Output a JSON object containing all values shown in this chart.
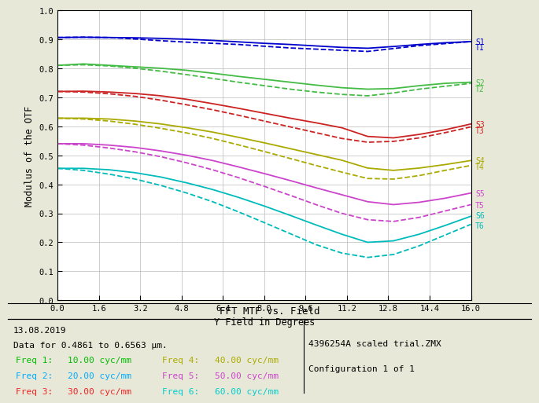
{
  "title": "FFT MTF vs. Field",
  "xlabel": "Y Field in Degrees",
  "ylabel": "Modulus of the OTF",
  "xlim": [
    0,
    16
  ],
  "ylim": [
    0.0,
    1.0
  ],
  "xticks": [
    0,
    1.6,
    3.2,
    4.8,
    6.4,
    8.0,
    9.6,
    11.2,
    12.8,
    14.4,
    16.0
  ],
  "yticks": [
    0.0,
    0.1,
    0.2,
    0.3,
    0.4,
    0.5,
    0.6,
    0.7,
    0.8,
    0.9,
    1.0
  ],
  "bg_color": "#e8e8d8",
  "plot_bg": "#ffffff",
  "date_text": "13.08.2019",
  "data_text": "Data for 0.4861 to 0.6563 µm.",
  "freq_labels": [
    {
      "label": "Freq 1:",
      "value": "10.00 cyc/mm",
      "color": "#00bb00"
    },
    {
      "label": "Freq 2:",
      "value": "20.00 cyc/mm",
      "color": "#00aaff"
    },
    {
      "label": "Freq 3:",
      "value": "30.00 cyc/mm",
      "color": "#ee2222"
    },
    {
      "label": "Freq 4:",
      "value": "40.00 cyc/mm",
      "color": "#aaaa00"
    },
    {
      "label": "Freq 5:",
      "value": "50.00 cyc/mm",
      "color": "#cc44cc"
    },
    {
      "label": "Freq 6:",
      "value": "60.00 cyc/mm",
      "color": "#00cccc"
    }
  ],
  "right_text_line1": "4396254A scaled trial.ZMX",
  "right_text_line2": "Configuration 1 of 1",
  "curves": {
    "S1": {
      "color": "#0000cc",
      "style": "solid",
      "x": [
        0,
        1,
        2,
        3,
        4,
        5,
        6,
        7,
        8,
        9,
        10,
        11,
        12,
        13,
        14,
        15,
        16
      ],
      "y": [
        0.906,
        0.907,
        0.906,
        0.905,
        0.903,
        0.9,
        0.896,
        0.891,
        0.886,
        0.882,
        0.877,
        0.872,
        0.869,
        0.875,
        0.882,
        0.888,
        0.892
      ]
    },
    "T1": {
      "color": "#0000cc",
      "style": "dashed",
      "x": [
        0,
        1,
        2,
        3,
        4,
        5,
        6,
        7,
        8,
        9,
        10,
        11,
        12,
        13,
        14,
        15,
        16
      ],
      "y": [
        0.906,
        0.907,
        0.906,
        0.901,
        0.895,
        0.89,
        0.886,
        0.882,
        0.876,
        0.87,
        0.866,
        0.862,
        0.858,
        0.868,
        0.878,
        0.885,
        0.892
      ]
    },
    "S2": {
      "color": "#44bb44",
      "style": "solid",
      "x": [
        0,
        1,
        2,
        3,
        4,
        5,
        6,
        7,
        8,
        9,
        10,
        11,
        12,
        13,
        14,
        15,
        16
      ],
      "y": [
        0.81,
        0.815,
        0.81,
        0.805,
        0.8,
        0.793,
        0.783,
        0.772,
        0.762,
        0.752,
        0.742,
        0.733,
        0.728,
        0.73,
        0.74,
        0.748,
        0.752
      ]
    },
    "T2": {
      "color": "#44bb44",
      "style": "dashed",
      "x": [
        0,
        1,
        2,
        3,
        4,
        5,
        6,
        7,
        8,
        9,
        10,
        11,
        12,
        13,
        14,
        15,
        16
      ],
      "y": [
        0.81,
        0.812,
        0.808,
        0.8,
        0.79,
        0.778,
        0.765,
        0.752,
        0.74,
        0.728,
        0.718,
        0.71,
        0.705,
        0.715,
        0.728,
        0.738,
        0.748
      ]
    },
    "S3": {
      "color": "#cc2222",
      "style": "solid",
      "x": [
        0,
        1,
        2,
        3,
        4,
        5,
        6,
        7,
        8,
        9,
        10,
        11,
        12,
        13,
        14,
        15,
        16
      ],
      "y": [
        0.72,
        0.721,
        0.718,
        0.713,
        0.705,
        0.693,
        0.678,
        0.662,
        0.645,
        0.628,
        0.612,
        0.595,
        0.565,
        0.56,
        0.572,
        0.588,
        0.608
      ]
    },
    "T3": {
      "color": "#cc2222",
      "style": "dashed",
      "x": [
        0,
        1,
        2,
        3,
        4,
        5,
        6,
        7,
        8,
        9,
        10,
        11,
        12,
        13,
        14,
        15,
        16
      ],
      "y": [
        0.72,
        0.718,
        0.712,
        0.703,
        0.69,
        0.674,
        0.657,
        0.638,
        0.618,
        0.598,
        0.578,
        0.558,
        0.545,
        0.548,
        0.56,
        0.578,
        0.598
      ]
    },
    "S4": {
      "color": "#aaaa00",
      "style": "solid",
      "x": [
        0,
        1,
        2,
        3,
        4,
        5,
        6,
        7,
        8,
        9,
        10,
        11,
        12,
        13,
        14,
        15,
        16
      ],
      "y": [
        0.628,
        0.628,
        0.625,
        0.618,
        0.608,
        0.595,
        0.58,
        0.562,
        0.543,
        0.523,
        0.503,
        0.483,
        0.456,
        0.448,
        0.456,
        0.468,
        0.482
      ]
    },
    "T4": {
      "color": "#aaaa00",
      "style": "dashed",
      "x": [
        0,
        1,
        2,
        3,
        4,
        5,
        6,
        7,
        8,
        9,
        10,
        11,
        12,
        13,
        14,
        15,
        16
      ],
      "y": [
        0.628,
        0.625,
        0.618,
        0.607,
        0.593,
        0.577,
        0.558,
        0.536,
        0.513,
        0.489,
        0.465,
        0.442,
        0.42,
        0.418,
        0.43,
        0.448,
        0.465
      ]
    },
    "S5": {
      "color": "#cc44cc",
      "style": "solid",
      "x": [
        0,
        1,
        2,
        3,
        4,
        5,
        6,
        7,
        8,
        9,
        10,
        11,
        12,
        13,
        14,
        15,
        16
      ],
      "y": [
        0.54,
        0.54,
        0.535,
        0.527,
        0.515,
        0.5,
        0.482,
        0.46,
        0.437,
        0.413,
        0.388,
        0.364,
        0.34,
        0.33,
        0.338,
        0.352,
        0.37
      ]
    },
    "T5": {
      "color": "#cc44cc",
      "style": "dashed",
      "x": [
        0,
        1,
        2,
        3,
        4,
        5,
        6,
        7,
        8,
        9,
        10,
        11,
        12,
        13,
        14,
        15,
        16
      ],
      "y": [
        0.54,
        0.535,
        0.525,
        0.512,
        0.495,
        0.474,
        0.45,
        0.423,
        0.393,
        0.362,
        0.33,
        0.3,
        0.278,
        0.272,
        0.286,
        0.308,
        0.33
      ]
    },
    "S6": {
      "color": "#00bbbb",
      "style": "solid",
      "x": [
        0,
        1,
        2,
        3,
        4,
        5,
        6,
        7,
        8,
        9,
        10,
        11,
        12,
        13,
        14,
        15,
        16
      ],
      "y": [
        0.455,
        0.455,
        0.45,
        0.44,
        0.425,
        0.405,
        0.382,
        0.355,
        0.325,
        0.293,
        0.26,
        0.228,
        0.2,
        0.205,
        0.228,
        0.258,
        0.29
      ]
    },
    "T6": {
      "color": "#00bbbb",
      "style": "dashed",
      "x": [
        0,
        1,
        2,
        3,
        4,
        5,
        6,
        7,
        8,
        9,
        10,
        11,
        12,
        13,
        14,
        15,
        16
      ],
      "y": [
        0.455,
        0.448,
        0.435,
        0.418,
        0.396,
        0.37,
        0.34,
        0.305,
        0.268,
        0.23,
        0.192,
        0.163,
        0.148,
        0.158,
        0.188,
        0.225,
        0.262
      ]
    }
  },
  "right_labels": [
    {
      "text": "S1",
      "color": "#0000cc",
      "yval": 0.892
    },
    {
      "text": "T1",
      "color": "#0000cc",
      "yval": 0.872
    },
    {
      "text": "S2",
      "color": "#44bb44",
      "yval": 0.752
    },
    {
      "text": "T2",
      "color": "#44bb44",
      "yval": 0.73
    },
    {
      "text": "S3",
      "color": "#cc2222",
      "yval": 0.608
    },
    {
      "text": "T3",
      "color": "#cc2222",
      "yval": 0.586
    },
    {
      "text": "S4",
      "color": "#aaaa00",
      "yval": 0.482
    },
    {
      "text": "T4",
      "color": "#aaaa00",
      "yval": 0.462
    },
    {
      "text": "S5",
      "color": "#cc44cc",
      "yval": 0.37
    },
    {
      "text": "T5",
      "color": "#cc44cc",
      "yval": 0.328
    },
    {
      "text": "S6",
      "color": "#00bbbb",
      "yval": 0.292
    },
    {
      "text": "T6",
      "color": "#00bbbb",
      "yval": 0.258
    }
  ]
}
